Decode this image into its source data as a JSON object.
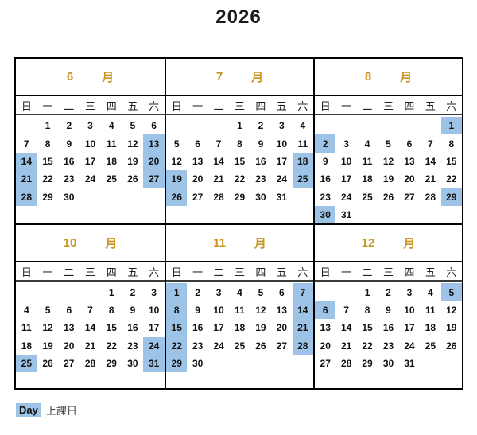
{
  "title": "2026",
  "month_suffix": "月",
  "weekdays": [
    "日",
    "一",
    "二",
    "三",
    "四",
    "五",
    "六"
  ],
  "colors": {
    "month_label": "#C9941F",
    "highlight": "#9DC3E6",
    "border": "#000000"
  },
  "months": [
    {
      "label": "6",
      "highlighted": [
        13,
        14,
        20,
        21,
        27,
        28
      ],
      "weeks": [
        [
          "",
          "1",
          "2",
          "3",
          "4",
          "5",
          "6"
        ],
        [
          "7",
          "8",
          "9",
          "10",
          "11",
          "12",
          "13"
        ],
        [
          "14",
          "15",
          "16",
          "17",
          "18",
          "19",
          "20"
        ],
        [
          "21",
          "22",
          "23",
          "24",
          "25",
          "26",
          "27"
        ],
        [
          "28",
          "29",
          "30",
          "",
          "",
          "",
          ""
        ]
      ]
    },
    {
      "label": "7",
      "highlighted": [
        18,
        19,
        25,
        26
      ],
      "weeks": [
        [
          "",
          "",
          "",
          "1",
          "2",
          "3",
          "4"
        ],
        [
          "5",
          "6",
          "7",
          "8",
          "9",
          "10",
          "11"
        ],
        [
          "12",
          "13",
          "14",
          "15",
          "16",
          "17",
          "18"
        ],
        [
          "19",
          "20",
          "21",
          "22",
          "23",
          "24",
          "25"
        ],
        [
          "26",
          "27",
          "28",
          "29",
          "30",
          "31",
          ""
        ]
      ]
    },
    {
      "label": "8",
      "highlighted": [
        1,
        2,
        29,
        30
      ],
      "weeks": [
        [
          "",
          "",
          "",
          "",
          "",
          "",
          "1"
        ],
        [
          "2",
          "3",
          "4",
          "5",
          "6",
          "7",
          "8"
        ],
        [
          "9",
          "10",
          "11",
          "12",
          "13",
          "14",
          "15"
        ],
        [
          "16",
          "17",
          "18",
          "19",
          "20",
          "21",
          "22"
        ],
        [
          "23",
          "24",
          "25",
          "26",
          "27",
          "28",
          "29"
        ],
        [
          "30",
          "31",
          "",
          "",
          "",
          "",
          ""
        ]
      ]
    },
    {
      "label": "10",
      "highlighted": [
        24,
        25,
        31
      ],
      "weeks": [
        [
          "",
          "",
          "",
          "",
          "1",
          "2",
          "3"
        ],
        [
          "4",
          "5",
          "6",
          "7",
          "8",
          "9",
          "10"
        ],
        [
          "11",
          "12",
          "13",
          "14",
          "15",
          "16",
          "17"
        ],
        [
          "18",
          "19",
          "20",
          "21",
          "22",
          "23",
          "24"
        ],
        [
          "25",
          "26",
          "27",
          "28",
          "29",
          "30",
          "31"
        ]
      ]
    },
    {
      "label": "11",
      "highlighted": [
        1,
        7,
        8,
        14,
        15,
        21,
        22,
        28,
        29
      ],
      "weeks": [
        [
          "1",
          "2",
          "3",
          "4",
          "5",
          "6",
          "7"
        ],
        [
          "8",
          "9",
          "10",
          "11",
          "12",
          "13",
          "14"
        ],
        [
          "15",
          "16",
          "17",
          "18",
          "19",
          "20",
          "21"
        ],
        [
          "22",
          "23",
          "24",
          "25",
          "26",
          "27",
          "28"
        ],
        [
          "29",
          "30",
          "",
          "",
          "",
          "",
          ""
        ]
      ]
    },
    {
      "label": "12",
      "highlighted": [
        5,
        6
      ],
      "weeks": [
        [
          "",
          "",
          "1",
          "2",
          "3",
          "4",
          "5"
        ],
        [
          "6",
          "7",
          "8",
          "9",
          "10",
          "11",
          "12"
        ],
        [
          "13",
          "14",
          "15",
          "16",
          "17",
          "18",
          "19"
        ],
        [
          "20",
          "21",
          "22",
          "23",
          "24",
          "25",
          "26"
        ],
        [
          "27",
          "28",
          "29",
          "30",
          "31",
          "",
          ""
        ]
      ]
    }
  ],
  "legend": {
    "key": "Day",
    "label": "上課日"
  }
}
